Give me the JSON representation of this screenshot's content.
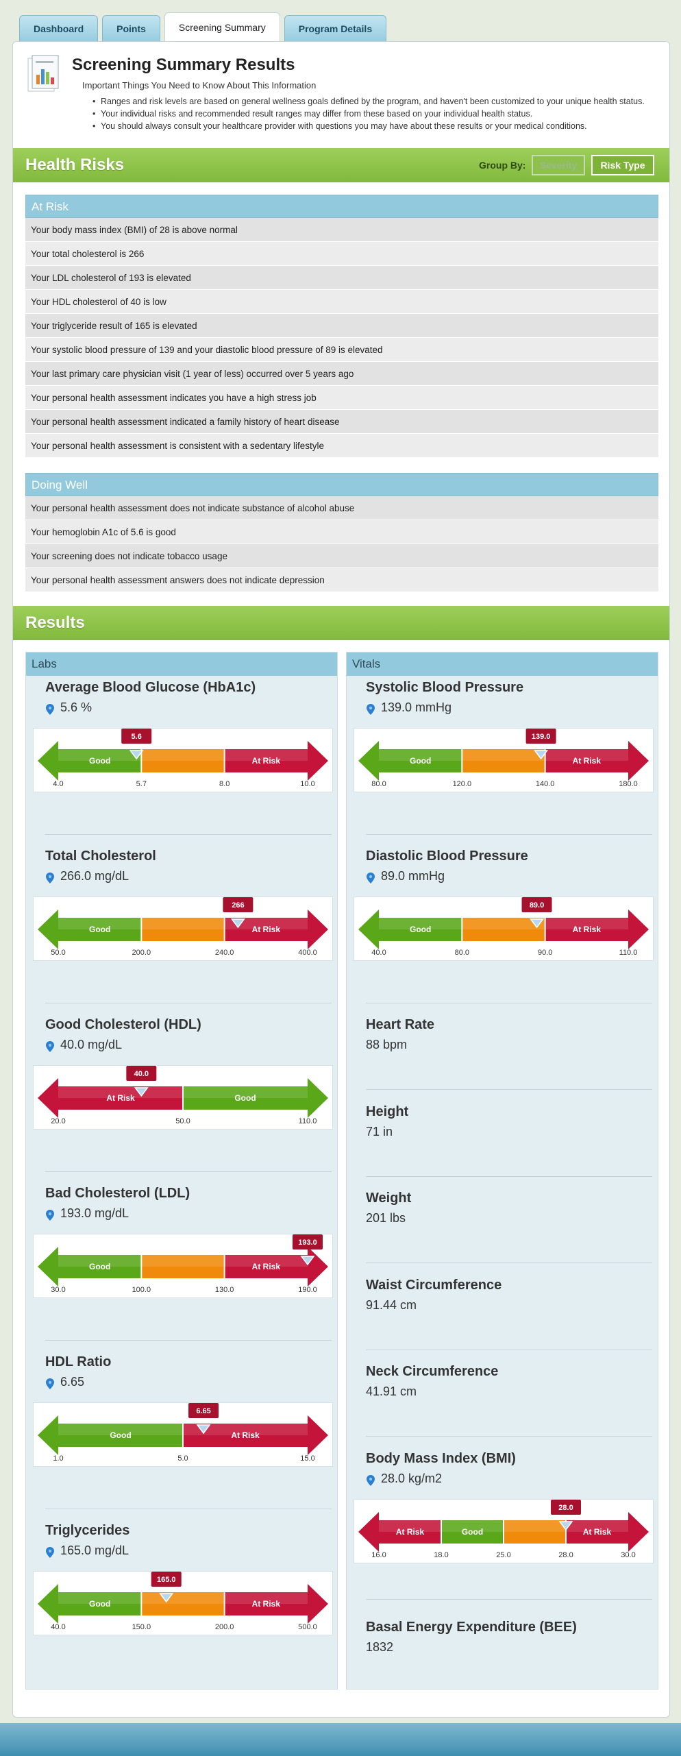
{
  "tabs": [
    "Dashboard",
    "Points",
    "Screening Summary",
    "Program Details"
  ],
  "summary": {
    "title": "Screening Summary Results",
    "subtitle": "Important Things You Need to Know About This Information",
    "notes": [
      "Ranges and risk levels are based on general wellness goals defined by the program, and haven't been customized to your unique health status.",
      "Your individual risks and recommended result ranges may differ from these based on your individual health status.",
      "You should always consult your healthcare provider with questions you may have about these results or your medical conditions."
    ]
  },
  "health_risks": {
    "title": "Health Risks",
    "group_by_label": "Group By:",
    "severity_label": "Severity",
    "risk_type_label": "Risk Type",
    "at_risk": {
      "heading": "At Risk",
      "items": [
        "Your body mass index (BMI) of 28 is above normal",
        "Your total cholesterol is 266",
        "Your LDL cholesterol of 193 is elevated",
        "Your HDL cholesterol of 40 is low",
        "Your triglyceride result of 165 is elevated",
        "Your systolic blood pressure of 139 and your diastolic blood pressure of  89 is elevated",
        "Your last primary care physician visit (1 year of less) occurred over 5 years ago",
        "Your personal health assessment indicates you have a high stress job",
        "Your personal health assessment indicated a family history of heart disease",
        "Your personal health assessment is consistent with a sedentary lifestyle"
      ]
    },
    "doing_well": {
      "heading": "Doing Well",
      "items": [
        "Your personal health assessment does not indicate substance of alcohol abuse",
        "Your hemoglobin A1c of 5.6 is good",
        "Your screening does not indicate tobacco usage",
        "Your personal health assessment answers does not indicate depression"
      ]
    }
  },
  "results": {
    "title": "Results",
    "labs_heading": "Labs",
    "vitals_heading": "Vitals",
    "labs": [
      {
        "title": "Average Blood Glucose (HbA1c)",
        "value": "5.6 %",
        "marker": "5.6",
        "marker_value": 5.6,
        "segments": [
          {
            "from": 4.0,
            "to": 5.7,
            "kind": "good",
            "label": "Good"
          },
          {
            "from": 5.7,
            "to": 8.0,
            "kind": "warn",
            "label": ""
          },
          {
            "from": 8.0,
            "to": 10.0,
            "kind": "risk",
            "label": "At Risk"
          }
        ],
        "ticks": [
          "4.0",
          "5.7",
          "8.0",
          "10.0"
        ],
        "left_arrow": "good",
        "right_arrow": "risk"
      },
      {
        "title": "Total Cholesterol",
        "value": "266.0 mg/dL",
        "marker": "266",
        "marker_value": 266,
        "segments": [
          {
            "from": 50,
            "to": 200,
            "kind": "good",
            "label": "Good"
          },
          {
            "from": 200,
            "to": 240,
            "kind": "warn",
            "label": ""
          },
          {
            "from": 240,
            "to": 400,
            "kind": "risk",
            "label": "At Risk"
          }
        ],
        "ticks": [
          "50.0",
          "200.0",
          "240.0",
          "400.0"
        ],
        "left_arrow": "good",
        "right_arrow": "risk"
      },
      {
        "title": "Good Cholesterol (HDL)",
        "value": "40.0 mg/dL",
        "marker": "40.0",
        "marker_value": 40,
        "segments": [
          {
            "from": 20,
            "to": 50,
            "kind": "risk",
            "label": "At Risk"
          },
          {
            "from": 50,
            "to": 110,
            "kind": "good",
            "label": "Good"
          }
        ],
        "ticks": [
          "20.0",
          "50.0",
          "110.0"
        ],
        "left_arrow": "risk",
        "right_arrow": "good"
      },
      {
        "title": "Bad Cholesterol (LDL)",
        "value": "193.0 mg/dL",
        "marker": "193.0",
        "marker_value": 190,
        "segments": [
          {
            "from": 30,
            "to": 100,
            "kind": "good",
            "label": "Good"
          },
          {
            "from": 100,
            "to": 130,
            "kind": "warn",
            "label": ""
          },
          {
            "from": 130,
            "to": 190,
            "kind": "risk",
            "label": "At Risk"
          }
        ],
        "ticks": [
          "30.0",
          "100.0",
          "130.0",
          "190.0"
        ],
        "left_arrow": "good",
        "right_arrow": "risk"
      },
      {
        "title": "HDL Ratio",
        "value": "6.65",
        "marker": "6.65",
        "marker_value": 6.65,
        "segments": [
          {
            "from": 1.0,
            "to": 5.0,
            "kind": "good",
            "label": "Good"
          },
          {
            "from": 5.0,
            "to": 15.0,
            "kind": "risk",
            "label": "At Risk"
          }
        ],
        "ticks": [
          "1.0",
          "5.0",
          "15.0"
        ],
        "left_arrow": "good",
        "right_arrow": "risk"
      },
      {
        "title": "Triglycerides",
        "value": "165.0 mg/dL",
        "marker": "165.0",
        "marker_value": 165,
        "segments": [
          {
            "from": 40,
            "to": 150,
            "kind": "good",
            "label": "Good"
          },
          {
            "from": 150,
            "to": 200,
            "kind": "warn",
            "label": ""
          },
          {
            "from": 200,
            "to": 500,
            "kind": "risk",
            "label": "At Risk"
          }
        ],
        "ticks": [
          "40.0",
          "150.0",
          "200.0",
          "500.0"
        ],
        "left_arrow": "good",
        "right_arrow": "risk"
      }
    ],
    "vitals": [
      {
        "title": "Systolic Blood Pressure",
        "value": "139.0 mmHg",
        "marker": "139.0",
        "marker_value": 139,
        "segments": [
          {
            "from": 80,
            "to": 120,
            "kind": "good",
            "label": "Good"
          },
          {
            "from": 120,
            "to": 140,
            "kind": "warn",
            "label": ""
          },
          {
            "from": 140,
            "to": 180,
            "kind": "risk",
            "label": "At Risk"
          }
        ],
        "ticks": [
          "80.0",
          "120.0",
          "140.0",
          "180.0"
        ],
        "left_arrow": "good",
        "right_arrow": "risk"
      },
      {
        "title": "Diastolic Blood Pressure",
        "value": "89.0 mmHg",
        "marker": "89.0",
        "marker_value": 89,
        "segments": [
          {
            "from": 40,
            "to": 80,
            "kind": "good",
            "label": "Good"
          },
          {
            "from": 80,
            "to": 90,
            "kind": "warn",
            "label": ""
          },
          {
            "from": 90,
            "to": 110,
            "kind": "risk",
            "label": "At Risk"
          }
        ],
        "ticks": [
          "40.0",
          "80.0",
          "90.0",
          "110.0"
        ],
        "left_arrow": "good",
        "right_arrow": "risk"
      },
      {
        "title": "Heart Rate",
        "value": "88 bpm"
      },
      {
        "title": "Height",
        "value": "71 in"
      },
      {
        "title": "Weight",
        "value": "201 lbs"
      },
      {
        "title": "Waist Circumference",
        "value": "91.44 cm"
      },
      {
        "title": "Neck Circumference",
        "value": "41.91 cm"
      },
      {
        "title": "Body Mass Index (BMI)",
        "value": "28.0 kg/m2",
        "marker": "28.0",
        "marker_value": 28,
        "segments": [
          {
            "from": 16,
            "to": 18,
            "kind": "risk",
            "label": "At Risk"
          },
          {
            "from": 18,
            "to": 25,
            "kind": "good",
            "label": "Good"
          },
          {
            "from": 25,
            "to": 28,
            "kind": "warn",
            "label": ""
          },
          {
            "from": 28,
            "to": 30,
            "kind": "risk",
            "label": "At Risk"
          }
        ],
        "ticks": [
          "16.0",
          "18.0",
          "25.0",
          "28.0",
          "30.0"
        ],
        "left_arrow": "risk",
        "right_arrow": "risk"
      },
      {
        "title": "Basal Energy Expenditure (BEE)",
        "value": "1832"
      }
    ]
  },
  "colors": {
    "good": "#5aa81a",
    "warn": "#f08a0a",
    "risk": "#c4143a",
    "band_green": "#8cc34a",
    "header_blue": "#92c9dc"
  }
}
